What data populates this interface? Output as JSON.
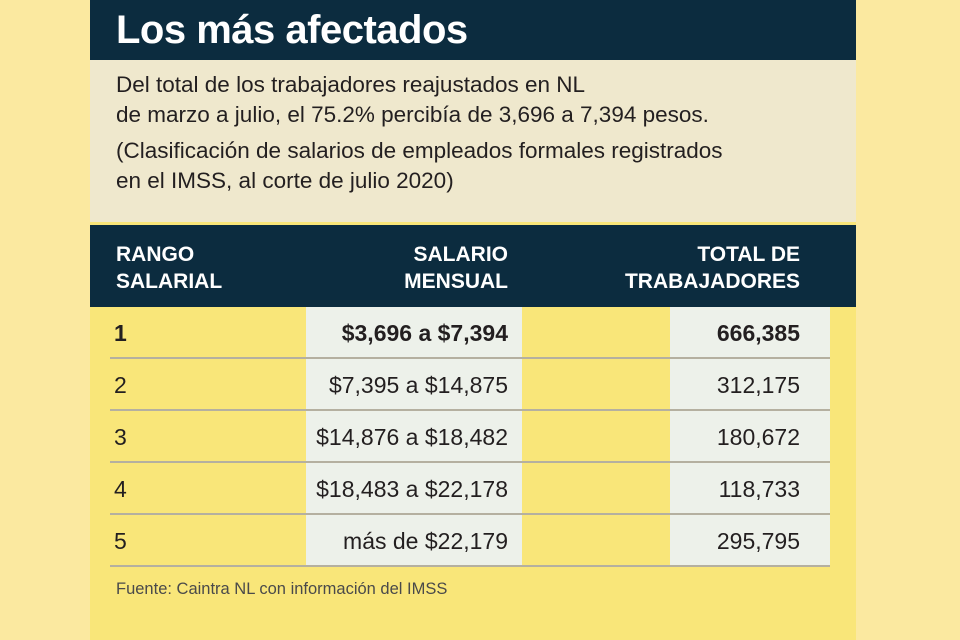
{
  "title": "Los más afectados",
  "intro": {
    "line1": "Del total de los trabajadores reajustados en NL",
    "line2": "de marzo a julio, el 75.2% percibía de 3,696 a 7,394 pesos.",
    "note1": "(Clasificación de salarios de empleados formales registrados",
    "note2": "en el IMSS, al corte de julio 2020)"
  },
  "table": {
    "headers": [
      {
        "l1": "RANGO",
        "l2": "SALARIAL"
      },
      {
        "l1": "SALARIO",
        "l2": "MENSUAL"
      },
      {
        "l1": "TOTAL DE",
        "l2": "TRABAJADORES"
      }
    ],
    "rows": [
      {
        "rango": "1",
        "salario": "$3,696 a $7,394",
        "total": "666,385"
      },
      {
        "rango": "2",
        "salario": "$7,395 a $14,875",
        "total": "312,175"
      },
      {
        "rango": "3",
        "salario": "$14,876 a $18,482",
        "total": "180,672"
      },
      {
        "rango": "4",
        "salario": "$18,483 a $22,178",
        "total": "118,733"
      },
      {
        "rango": "5",
        "salario": "más de $22,179",
        "total": "295,795"
      }
    ]
  },
  "source": "Fuente: Caintra NL con información del IMSS",
  "colors": {
    "navy": "#0c2c3f",
    "yellow": "#f9e679",
    "beige": "#efe8cd",
    "light": "#edf1ea"
  }
}
